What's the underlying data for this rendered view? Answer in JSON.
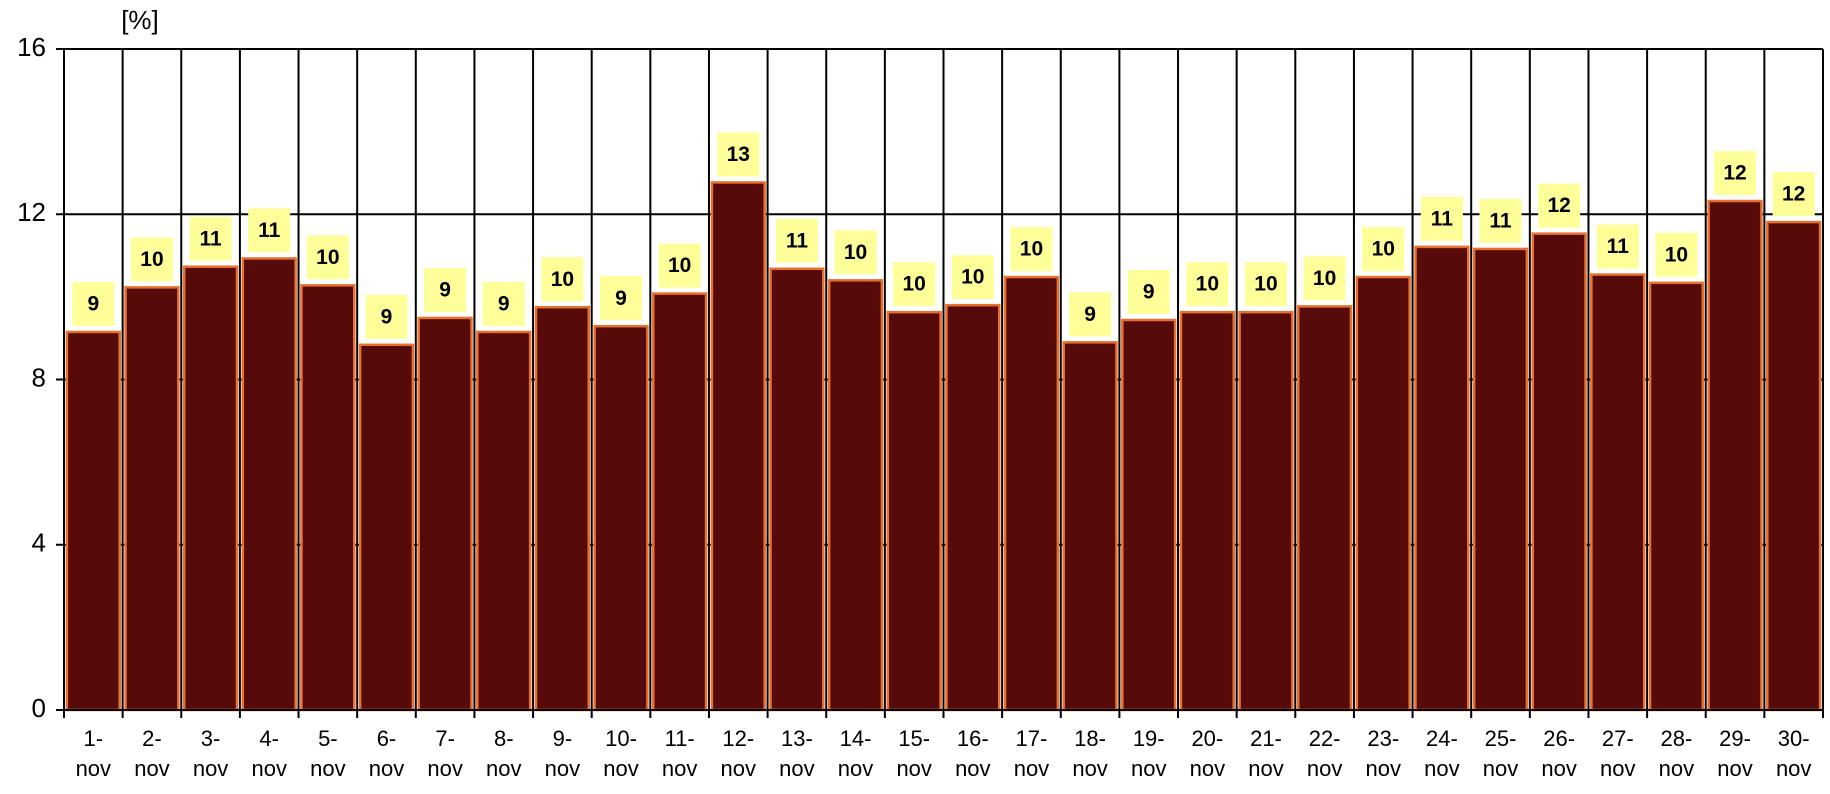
{
  "chart_data": {
    "type": "bar",
    "y_label": "[%]",
    "categories": [
      "1-nov",
      "2-nov",
      "3-nov",
      "4-nov",
      "5-nov",
      "6-nov",
      "7-nov",
      "8-nov",
      "9-nov",
      "10-nov",
      "11-nov",
      "12-nov",
      "13-nov",
      "14-nov",
      "15-nov",
      "16-nov",
      "17-nov",
      "18-nov",
      "19-nov",
      "20-nov",
      "21-nov",
      "22-nov",
      "23-nov",
      "24-nov",
      "25-nov",
      "26-nov",
      "27-nov",
      "28-nov",
      "29-nov",
      "30-nov"
    ],
    "values": [
      9.15,
      10.23,
      10.73,
      10.93,
      10.28,
      8.84,
      9.49,
      9.15,
      9.75,
      9.29,
      10.08,
      12.77,
      10.68,
      10.4,
      9.63,
      9.8,
      10.48,
      8.9,
      9.44,
      9.63,
      9.63,
      9.77,
      10.48,
      11.21,
      11.16,
      11.53,
      10.54,
      10.34,
      12.32,
      11.81
    ],
    "value_labels": [
      "9",
      "10",
      "11",
      "11",
      "10",
      "9",
      "9",
      "9",
      "10",
      "9",
      "10",
      "13",
      "11",
      "10",
      "10",
      "10",
      "10",
      "9",
      "9",
      "10",
      "10",
      "10",
      "10",
      "11",
      "11",
      "12",
      "11",
      "10",
      "12",
      "12"
    ],
    "color": "#560a0a",
    "edge_color": "#e8702e",
    "label_box_color": "#ffff99",
    "ylim": [
      0,
      16
    ],
    "yticks": [
      0,
      4,
      8,
      12,
      16
    ],
    "grid": true
  }
}
